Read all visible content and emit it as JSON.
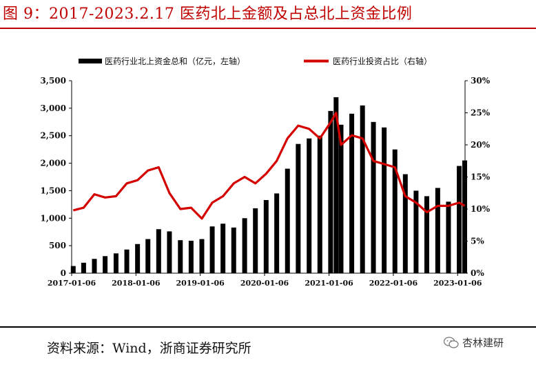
{
  "title": "图 9：2017-2023.2.17 医药北上金额及占总北上资金比例",
  "source": "资料来源：Wind，浙商证券研究所",
  "watermark": "杏林建研",
  "colors": {
    "bar": "#000000",
    "line": "#d40000",
    "title": "#c00000"
  },
  "chart_data": {
    "type": "bar+line",
    "series": [
      {
        "name": "医药行业北上资金总和（亿元，左轴）",
        "type": "bar",
        "axis": "left",
        "x": [
          "2017-01",
          "2017-03",
          "2017-05",
          "2017-07",
          "2017-09",
          "2017-11",
          "2018-01",
          "2018-03",
          "2018-05",
          "2018-07",
          "2018-09",
          "2018-11",
          "2019-01",
          "2019-03",
          "2019-05",
          "2019-07",
          "2019-09",
          "2019-11",
          "2020-01",
          "2020-03",
          "2020-05",
          "2020-07",
          "2020-09",
          "2020-11",
          "2021-01",
          "2021-02",
          "2021-03",
          "2021-05",
          "2021-07",
          "2021-09",
          "2021-11",
          "2022-01",
          "2022-03",
          "2022-05",
          "2022-07",
          "2022-09",
          "2022-11",
          "2023-01",
          "2023-02"
        ],
        "values": [
          130,
          190,
          260,
          310,
          360,
          430,
          530,
          620,
          800,
          760,
          600,
          590,
          620,
          850,
          900,
          830,
          1000,
          1180,
          1330,
          1450,
          1900,
          2350,
          2450,
          2500,
          2950,
          3200,
          2700,
          2900,
          3050,
          2750,
          2650,
          2250,
          1800,
          1500,
          1400,
          1550,
          1300,
          1950,
          2050
        ]
      },
      {
        "name": "医药行业投资占比（右轴）",
        "type": "line",
        "axis": "right",
        "x": [
          "2017-01",
          "2017-03",
          "2017-05",
          "2017-07",
          "2017-09",
          "2017-11",
          "2018-01",
          "2018-03",
          "2018-05",
          "2018-07",
          "2018-09",
          "2018-11",
          "2019-01",
          "2019-03",
          "2019-05",
          "2019-07",
          "2019-09",
          "2019-11",
          "2020-01",
          "2020-03",
          "2020-05",
          "2020-07",
          "2020-09",
          "2020-11",
          "2021-01",
          "2021-02",
          "2021-03",
          "2021-05",
          "2021-07",
          "2021-09",
          "2021-11",
          "2022-01",
          "2022-03",
          "2022-05",
          "2022-07",
          "2022-09",
          "2022-11",
          "2023-01",
          "2023-02"
        ],
        "values": [
          9.8,
          10.2,
          12.3,
          11.8,
          12.0,
          14.0,
          14.5,
          16.0,
          16.5,
          12.5,
          10.0,
          10.2,
          8.5,
          11.0,
          12.0,
          14.0,
          15.0,
          14.0,
          15.5,
          17.5,
          21.0,
          23.0,
          22.5,
          21.0,
          23.5,
          25.0,
          20.0,
          21.5,
          21.0,
          17.5,
          17.0,
          16.5,
          12.0,
          11.0,
          9.5,
          10.5,
          10.5,
          11.0,
          10.5
        ]
      }
    ],
    "x_ticks": [
      "2017-01-06",
      "2018-01-06",
      "2019-01-06",
      "2020-01-06",
      "2021-01-06",
      "2022-01-06",
      "2023-01-06"
    ],
    "y_left_ticks": [
      "0",
      "500",
      "1,000",
      "1,500",
      "2,000",
      "2,500",
      "3,000",
      "3,500"
    ],
    "y_right_ticks": [
      "0%",
      "5%",
      "10%",
      "15%",
      "20%",
      "25%",
      "30%"
    ],
    "y_left_range": [
      0,
      3500
    ],
    "y_right_range": [
      0,
      30
    ],
    "x_range": [
      "2017-01-06",
      "2023-02-17"
    ],
    "legend_position": "top-center",
    "grid": false
  }
}
